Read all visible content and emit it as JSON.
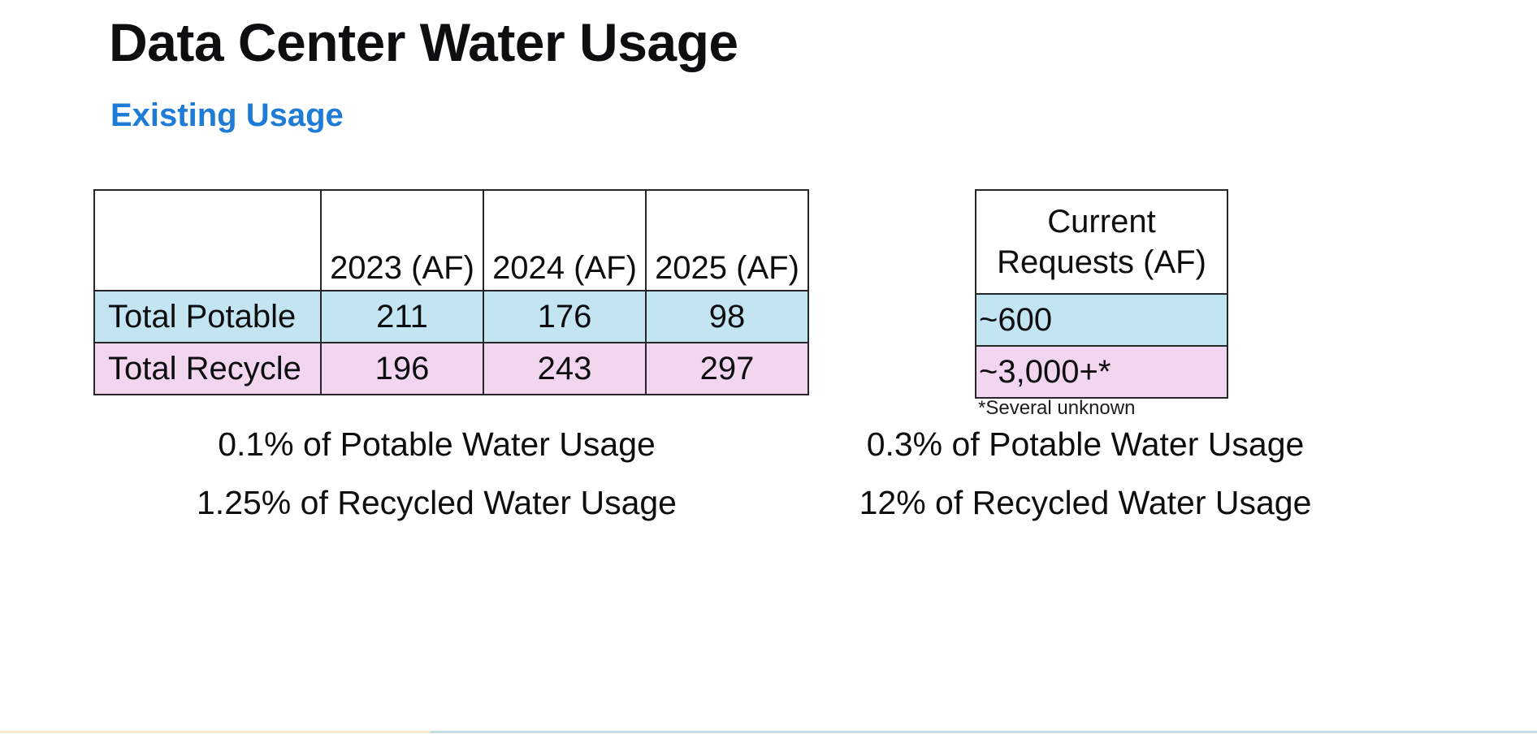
{
  "page": {
    "title": "Data Center Water Usage",
    "subtitle": "Existing Usage"
  },
  "usage_table": {
    "columns": [
      "",
      "2023 (AF)",
      "2024 (AF)",
      "2025 (AF)"
    ],
    "rows": [
      {
        "label": "Total Potable",
        "values": [
          "211",
          "176",
          "98"
        ]
      },
      {
        "label": "Total Recycle",
        "values": [
          "196",
          "243",
          "297"
        ]
      }
    ]
  },
  "requests_table": {
    "header": "Current Requests (AF)",
    "rows": [
      "~600",
      "~3,000+*"
    ],
    "footnote": "*Several unknown"
  },
  "stats_left": [
    "0.1% of Potable Water Usage",
    "1.25% of Recycled Water Usage"
  ],
  "stats_right": [
    "0.3% of Potable Water Usage",
    "12% of Recycled Water Usage"
  ],
  "colors": {
    "accent_blue": "#1E7CD6",
    "row_blue": "#C3E5F2",
    "row_pink": "#F2D6F0",
    "table_border": "#262626",
    "strip_cream": "#F4E9CF",
    "strip_blue": "#C8DEE7"
  }
}
